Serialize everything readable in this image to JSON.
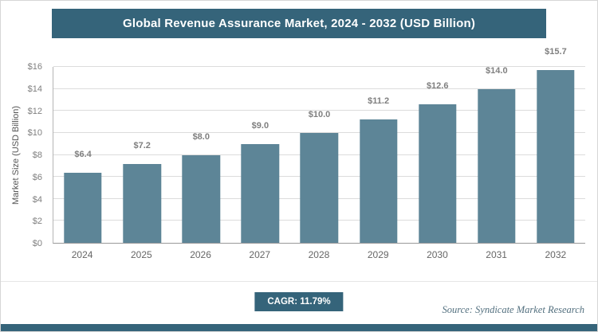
{
  "title": "Global Revenue Assurance Market, 2024 - 2032 (USD Billion)",
  "chart_data": {
    "type": "bar",
    "title": "Global Revenue Assurance Market, 2024 - 2032 (USD Billion)",
    "categories": [
      "2024",
      "2025",
      "2026",
      "2027",
      "2028",
      "2029",
      "2030",
      "2031",
      "2032"
    ],
    "values": [
      6.4,
      7.2,
      8.0,
      9.0,
      10.0,
      11.2,
      12.6,
      14.0,
      15.7
    ],
    "value_labels": [
      "$6.4",
      "$7.2",
      "$8.0",
      "$9.0",
      "$10.0",
      "$11.2",
      "$12.6",
      "$14.0",
      "$15.7"
    ],
    "xlabel": "",
    "ylabel": "Market Size (USD Billion)",
    "ylim": [
      0,
      16
    ],
    "ytick_step": 2,
    "ytick_labels": [
      "$0",
      "$2",
      "$4",
      "$6",
      "$8",
      "$10",
      "$12",
      "$14",
      "$16"
    ],
    "grid": true,
    "legend": "none"
  },
  "footer": {
    "cagr_label": "CAGR: 11.79%",
    "source": "Source: Syndicate Market Research"
  },
  "colors": {
    "header_bg": "#35647a",
    "bar": "#5d8597",
    "badge_bg": "#35647a",
    "accent_bar": "#35647a"
  }
}
